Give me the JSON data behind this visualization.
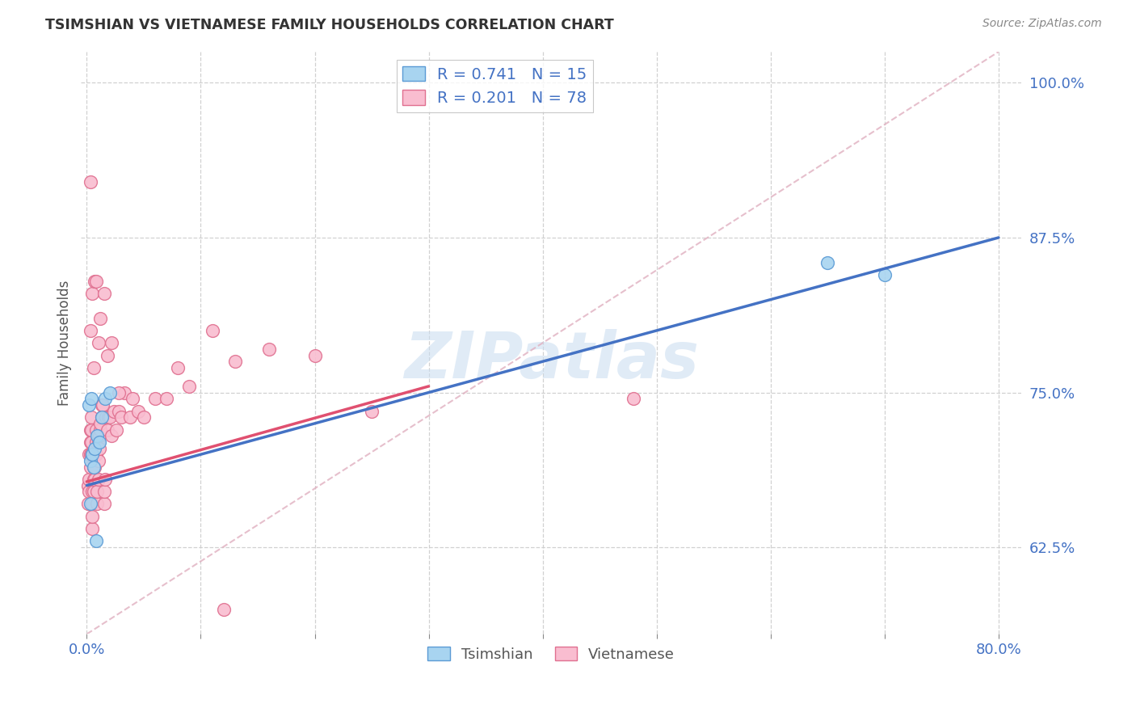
{
  "title": "TSIMSHIAN VS VIETNAMESE FAMILY HOUSEHOLDS CORRELATION CHART",
  "source_text": "Source: ZipAtlas.com",
  "xlabel_tsimshian": "Tsimshian",
  "xlabel_vietnamese": "Vietnamese",
  "ylabel": "Family Households",
  "xlim": [
    -0.005,
    0.82
  ],
  "ylim": [
    0.555,
    1.025
  ],
  "yticks": [
    0.625,
    0.75,
    0.875,
    1.0
  ],
  "yticklabels": [
    "62.5%",
    "75.0%",
    "87.5%",
    "100.0%"
  ],
  "xtick_positions": [
    0.0,
    0.1,
    0.2,
    0.3,
    0.4,
    0.5,
    0.6,
    0.7,
    0.8
  ],
  "xticklabels": [
    "0.0%",
    "",
    "",
    "",
    "",
    "",
    "",
    "",
    "80.0%"
  ],
  "r_tsimshian": 0.741,
  "n_tsimshian": 15,
  "r_vietnamese": 0.201,
  "n_vietnamese": 78,
  "color_tsimshian_fill": "#A8D4F0",
  "color_tsimshian_edge": "#5B9BD5",
  "color_vietnamese_fill": "#F9BDD0",
  "color_vietnamese_edge": "#E07090",
  "color_tsimshian_line": "#4472C4",
  "color_vietnamese_line": "#E05070",
  "color_diagonal": "#E0B0C0",
  "watermark": "ZIPatlas",
  "tsimshian_line": [
    0.0,
    0.675,
    0.8,
    0.875
  ],
  "vietnamese_line": [
    0.0,
    0.678,
    0.3,
    0.755
  ],
  "tsimshian_x": [
    0.002,
    0.003,
    0.004,
    0.005,
    0.006,
    0.007,
    0.009,
    0.011,
    0.013,
    0.016,
    0.02,
    0.65,
    0.7,
    0.003,
    0.008
  ],
  "tsimshian_y": [
    0.74,
    0.695,
    0.745,
    0.7,
    0.69,
    0.705,
    0.715,
    0.71,
    0.73,
    0.745,
    0.75,
    0.855,
    0.845,
    0.66,
    0.63
  ],
  "vietnamese_x": [
    0.001,
    0.001,
    0.002,
    0.002,
    0.002,
    0.003,
    0.003,
    0.003,
    0.003,
    0.004,
    0.004,
    0.004,
    0.004,
    0.005,
    0.005,
    0.005,
    0.005,
    0.006,
    0.006,
    0.006,
    0.007,
    0.007,
    0.007,
    0.008,
    0.008,
    0.008,
    0.009,
    0.009,
    0.01,
    0.01,
    0.01,
    0.011,
    0.011,
    0.012,
    0.012,
    0.013,
    0.013,
    0.014,
    0.015,
    0.015,
    0.016,
    0.017,
    0.018,
    0.019,
    0.02,
    0.022,
    0.024,
    0.026,
    0.028,
    0.03,
    0.033,
    0.038,
    0.04,
    0.045,
    0.05,
    0.06,
    0.07,
    0.08,
    0.09,
    0.11,
    0.13,
    0.16,
    0.2,
    0.25,
    0.003,
    0.005,
    0.007,
    0.008,
    0.01,
    0.012,
    0.015,
    0.018,
    0.022,
    0.028,
    0.48,
    0.003,
    0.006,
    0.12
  ],
  "vietnamese_y": [
    0.66,
    0.675,
    0.67,
    0.68,
    0.7,
    0.69,
    0.7,
    0.71,
    0.72,
    0.7,
    0.71,
    0.72,
    0.73,
    0.64,
    0.65,
    0.66,
    0.67,
    0.67,
    0.68,
    0.69,
    0.68,
    0.69,
    0.7,
    0.7,
    0.71,
    0.72,
    0.66,
    0.67,
    0.68,
    0.695,
    0.71,
    0.705,
    0.715,
    0.72,
    0.725,
    0.73,
    0.74,
    0.74,
    0.66,
    0.67,
    0.68,
    0.73,
    0.72,
    0.73,
    0.73,
    0.715,
    0.735,
    0.72,
    0.735,
    0.73,
    0.75,
    0.73,
    0.745,
    0.735,
    0.73,
    0.745,
    0.745,
    0.77,
    0.755,
    0.8,
    0.775,
    0.785,
    0.78,
    0.735,
    0.92,
    0.83,
    0.84,
    0.84,
    0.79,
    0.81,
    0.83,
    0.78,
    0.79,
    0.75,
    0.745,
    0.8,
    0.77,
    0.575
  ]
}
